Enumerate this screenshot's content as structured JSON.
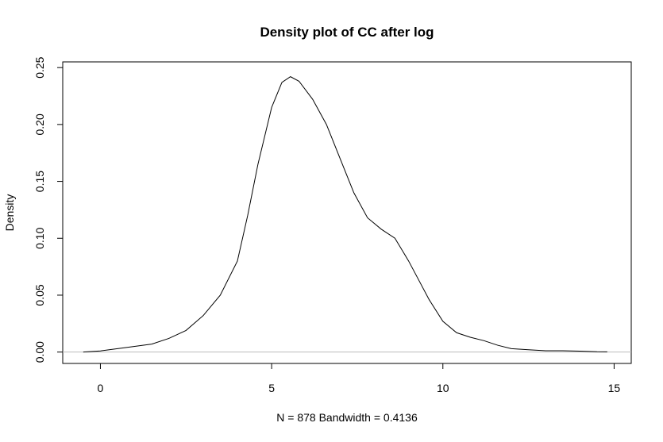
{
  "chart_data": {
    "type": "line",
    "title": "Density plot of CC after log",
    "xlabel": "N = 878   Bandwidth = 0.4136",
    "ylabel": "Density",
    "xlim": [
      -1.1,
      15.5
    ],
    "ylim": [
      -0.01,
      0.255
    ],
    "x_ticks": [
      0,
      5,
      10,
      15
    ],
    "y_ticks": [
      0.0,
      0.05,
      0.1,
      0.15,
      0.2,
      0.25
    ],
    "y_tick_labels": [
      "0.00",
      "0.05",
      "0.10",
      "0.15",
      "0.20",
      "0.25"
    ],
    "grid": false,
    "zero_line": 0.0,
    "series": [
      {
        "x": [
          -0.5,
          0.0,
          0.5,
          1.0,
          1.5,
          2.0,
          2.5,
          3.0,
          3.5,
          4.0,
          4.3,
          4.6,
          5.0,
          5.3,
          5.55,
          5.8,
          6.2,
          6.6,
          7.0,
          7.4,
          7.8,
          8.2,
          8.6,
          9.0,
          9.3,
          9.6,
          10.0,
          10.4,
          10.8,
          11.2,
          11.6,
          12.0,
          12.5,
          13.0,
          13.5,
          14.0,
          14.5,
          14.8
        ],
        "y": [
          0.0,
          0.001,
          0.003,
          0.005,
          0.007,
          0.012,
          0.019,
          0.032,
          0.05,
          0.08,
          0.12,
          0.165,
          0.215,
          0.237,
          0.242,
          0.238,
          0.222,
          0.2,
          0.17,
          0.14,
          0.118,
          0.108,
          0.1,
          0.08,
          0.063,
          0.046,
          0.027,
          0.017,
          0.013,
          0.01,
          0.006,
          0.003,
          0.002,
          0.0012,
          0.0012,
          0.0008,
          0.0003,
          0.0002
        ]
      }
    ]
  }
}
